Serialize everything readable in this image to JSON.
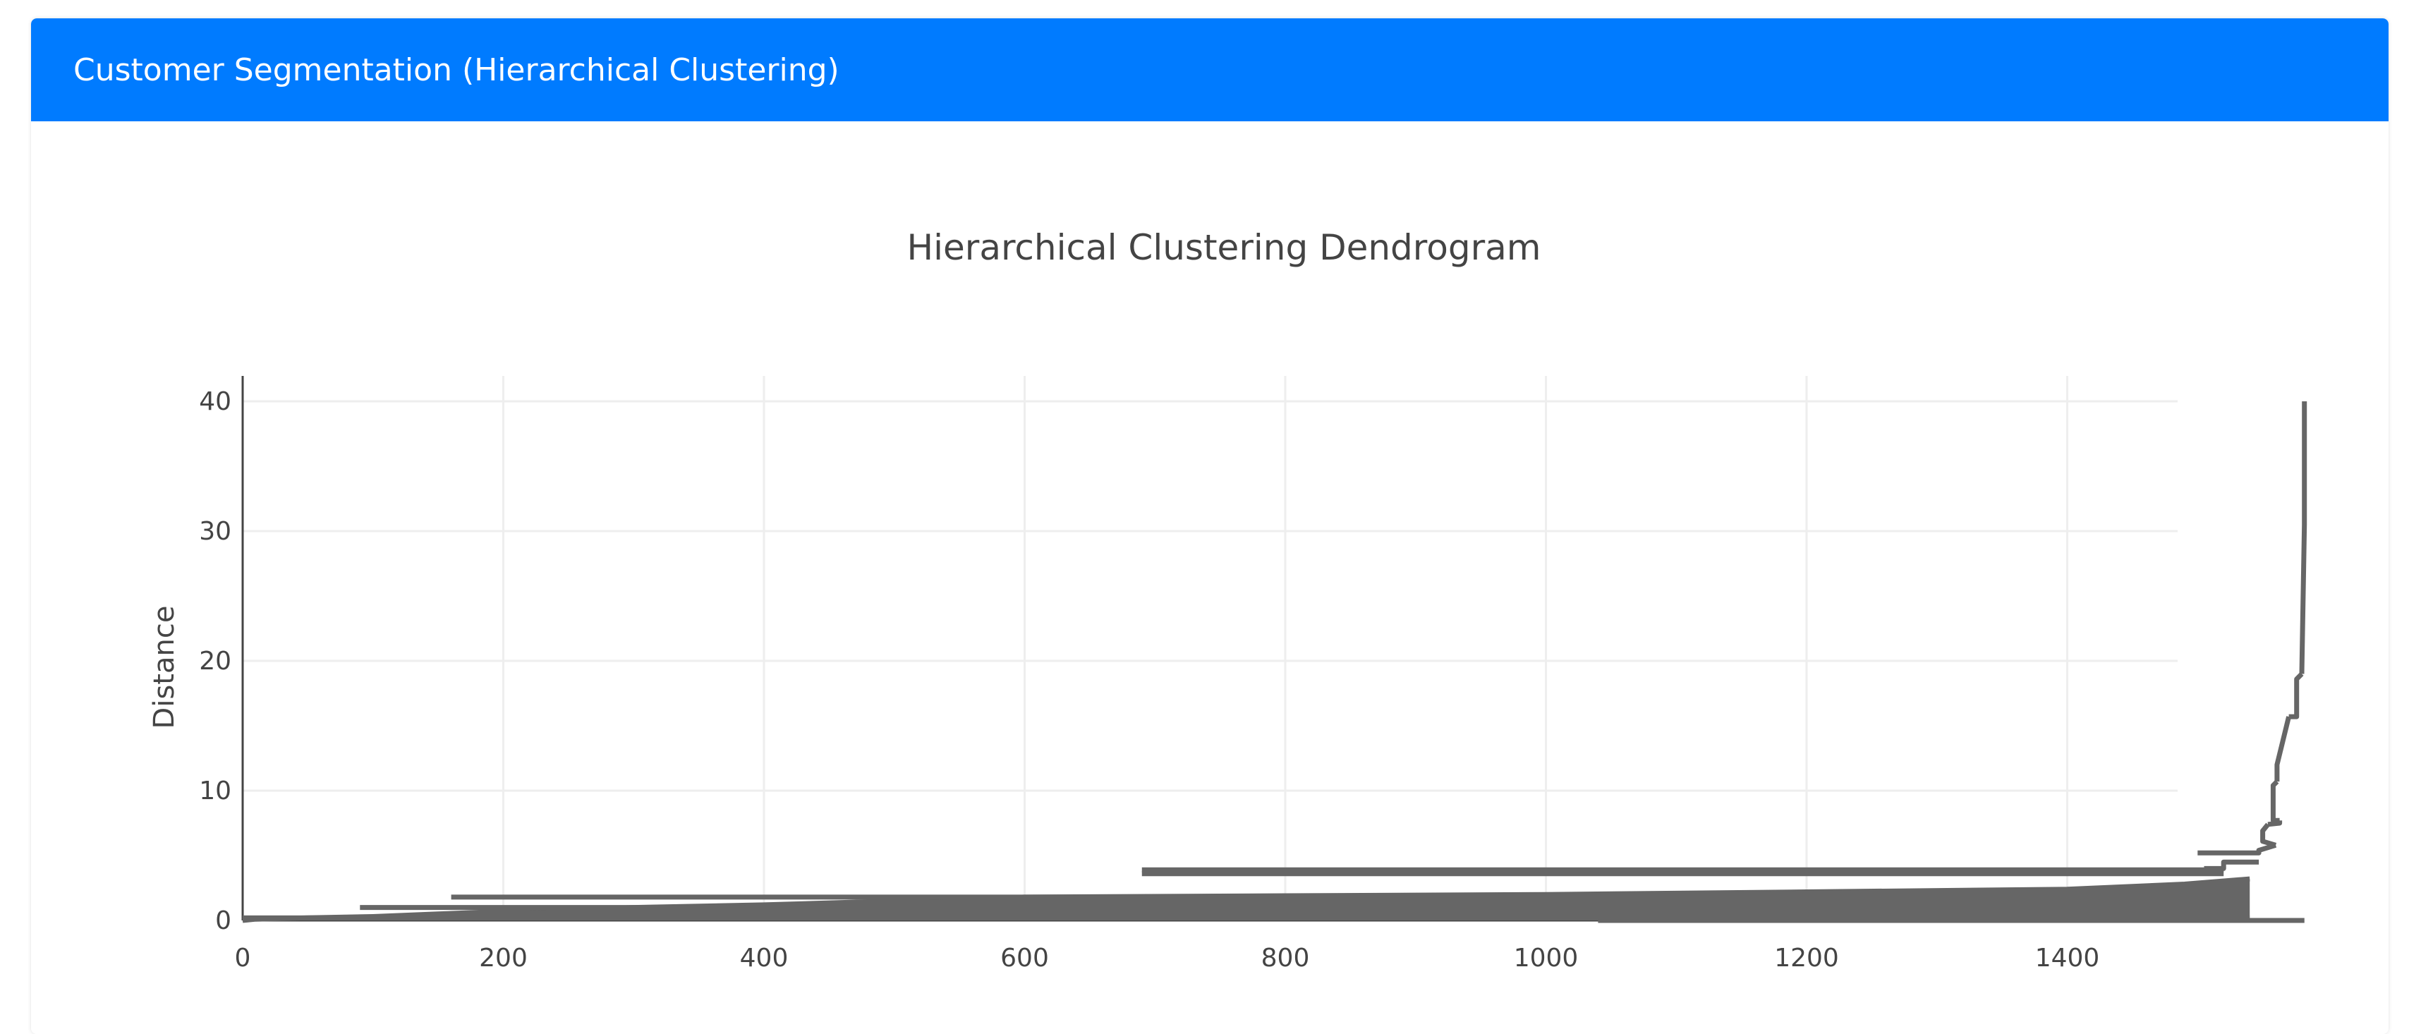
{
  "header": {
    "title": "Customer Segmentation (Hierarchical Clustering)"
  },
  "colors": {
    "header_bg": "#007bff",
    "line": "#666666",
    "grid": "#eeeeee"
  },
  "chart_data": {
    "type": "line",
    "title": "Hierarchical Clustering Dendrogram",
    "xlabel": "",
    "ylabel": "Distance",
    "xlim": [
      0,
      1585
    ],
    "ylim": [
      -1,
      42
    ],
    "xticks": [
      0,
      200,
      400,
      600,
      800,
      1000,
      1200,
      1400
    ],
    "yticks": [
      0,
      10,
      20,
      30,
      40
    ],
    "grid": true,
    "series": [
      {
        "values": [
          {
            "x": [
              1582,
              1582,
              1580,
              1580
            ],
            "y": [
              40.0,
              30.5,
              19.0,
              19.0
            ]
          },
          {
            "x": [
              1580,
              1576,
              1576,
              1570
            ],
            "y": [
              19.0,
              18.6,
              15.7,
              15.7
            ]
          },
          {
            "x": [
              1570,
              1561,
              1561,
              1561
            ],
            "y": [
              15.7,
              12.0,
              12.0,
              10.7
            ]
          },
          {
            "x": [
              1561,
              1558,
              1558,
              1563
            ],
            "y": [
              10.7,
              10.4,
              7.7,
              7.7
            ]
          },
          {
            "x": [
              1563,
              1563,
              1554,
              1554
            ],
            "y": [
              7.7,
              7.5,
              7.4,
              7.4
            ]
          },
          {
            "x": [
              1554,
              1550,
              1550,
              1560
            ],
            "y": [
              7.4,
              6.9,
              6.1,
              5.8
            ]
          },
          {
            "x": [
              1560,
              1547,
              1547,
              1500
            ],
            "y": [
              5.8,
              5.4,
              5.2,
              5.2
            ]
          },
          {
            "x": [
              1547,
              1520,
              1520,
              1505
            ],
            "y": [
              4.5,
              4.5,
              4.0,
              4.0
            ]
          },
          {
            "x": [
              1540,
              1490,
              1400,
              1200,
              1000,
              800,
              600,
              500,
              400,
              300,
              200,
              150,
              100,
              50,
              10,
              0
            ],
            "y": [
              3.2,
              2.8,
              2.4,
              2.2,
              2.0,
              1.9,
              1.8,
              1.5,
              1.2,
              1.0,
              0.7,
              0.5,
              0.3,
              0.2,
              0.1,
              0.0
            ]
          }
        ]
      },
      {
        "values": [
          {
            "x": [
              690,
              1520
            ],
            "y": [
              3.9,
              3.9
            ]
          },
          {
            "x": [
              690,
              1520
            ],
            "y": [
              3.6,
              3.6
            ]
          },
          {
            "x": [
              160,
              750
            ],
            "y": [
              1.8,
              1.8
            ]
          },
          {
            "x": [
              90,
              500
            ],
            "y": [
              1.0,
              1.0
            ]
          },
          {
            "x": [
              0,
              1540
            ],
            "y": [
              0.2,
              0.2
            ]
          },
          {
            "x": [
              1040,
              1582
            ],
            "y": [
              0.0,
              0.0
            ]
          }
        ]
      }
    ]
  }
}
